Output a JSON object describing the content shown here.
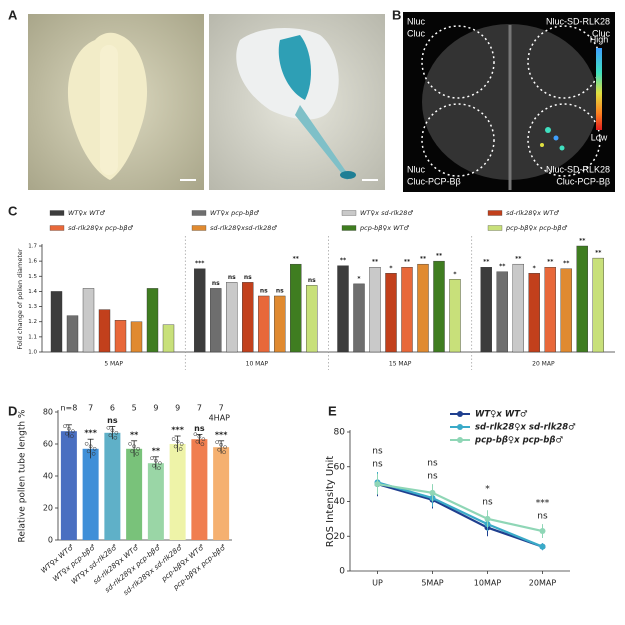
{
  "panel_labels": [
    "A",
    "B",
    "C",
    "D",
    "E"
  ],
  "panel_b": {
    "labels": [
      "Nluc",
      "Cluc",
      "Nluc-SD-RLK28",
      "Cluc",
      "Nluc",
      "Cluc-PCP-Bβ",
      "Nluc-SD-RLK28",
      "Cluc-PCP-Bβ"
    ],
    "scale": [
      "High",
      "Low"
    ]
  },
  "chart_data": [
    {
      "type": "bar",
      "ylabel": "Fold change of pollen diameter",
      "categories": [
        "5 MAP",
        "10 MAP",
        "15 MAP",
        "20 MAP"
      ],
      "ylim": [
        1.0,
        1.7
      ],
      "yticks": [
        {
          "value": 1.0,
          "label": "1.0"
        },
        1.1,
        1.2,
        1.3,
        1.4,
        1.5,
        1.6,
        1.7
      ],
      "series": [
        {
          "name": "WT♀x WT♂",
          "color": "#3c3c3c",
          "values": [
            1.4,
            1.55,
            1.57,
            1.56
          ],
          "labels": [
            null,
            "***",
            "**",
            "**"
          ]
        },
        {
          "name": "WT♀x pcp-bβ♂",
          "color": "#6e6e6e",
          "values": [
            1.24,
            1.42,
            1.45,
            1.53
          ],
          "labels": [
            null,
            "ns",
            "*",
            "**"
          ]
        },
        {
          "name": "WT♀x sd-rlk28♂",
          "color": "#c9c9c9",
          "values": [
            1.42,
            1.46,
            1.56,
            1.58
          ],
          "labels": [
            null,
            "ns",
            "**",
            "**"
          ]
        },
        {
          "name": "sd-rlk28♀x WT♂",
          "color": "#c2401c",
          "values": [
            1.28,
            1.46,
            1.52,
            1.52
          ],
          "labels": [
            null,
            "ns",
            "*",
            "*"
          ]
        },
        {
          "name": "sd-rlk28♀x pcp-bβ♂",
          "color": "#e8683a",
          "values": [
            1.21,
            1.37,
            1.56,
            1.56
          ],
          "labels": [
            null,
            "ns",
            "**",
            "**"
          ]
        },
        {
          "name": "sd-rlk28♀xsd-rlk28♂",
          "color": "#e08a30",
          "values": [
            1.2,
            1.37,
            1.58,
            1.55
          ],
          "labels": [
            null,
            "ns",
            "**",
            "**"
          ]
        },
        {
          "name": "pcp-bβ♀x WT♂",
          "color": "#3f7d20",
          "values": [
            1.42,
            1.58,
            1.6,
            1.7
          ],
          "labels": [
            null,
            "**",
            "**",
            "**"
          ]
        },
        {
          "name": "pcp-bβ♀x pcp-bβ♂",
          "color": "#c8e07a",
          "values": [
            1.18,
            1.44,
            1.48,
            1.62
          ],
          "labels": [
            null,
            "ns",
            "*",
            "**"
          ]
        }
      ]
    },
    {
      "type": "bar",
      "ylabel": "Relative pollen tube length %",
      "note": "4HAP",
      "categories": [
        "WT♀x WT♂",
        "WT♀x pcp-bβ♂",
        "WT♀x sd-rlk28♂",
        "sd-rlk28♀x WT♂",
        "sd-rlk28♀x pcp-bβ♂",
        "sd-rlk28♀x sd-rlk28♂",
        "pcp-bβ♀x WT♂",
        "pcp-bβ♀x pcp-bβ♂"
      ],
      "values": [
        68,
        57,
        67,
        57,
        48,
        60,
        63,
        58
      ],
      "errors": [
        4,
        6,
        4,
        5,
        4,
        5,
        3,
        4
      ],
      "colors": [
        "#4a6fc1",
        "#3f8fd8",
        "#5fb0c8",
        "#79c27a",
        "#9ad6a6",
        "#eef3a8",
        "#f07e50",
        "#f5b070"
      ],
      "n_labels": [
        "n=8",
        "7",
        "6",
        "5",
        "9",
        "9",
        "7",
        "7"
      ],
      "annotations": [
        null,
        "***",
        "ns",
        "**",
        "**",
        "***",
        "ns",
        "***"
      ],
      "ylim": [
        0,
        80
      ],
      "yticks": [
        0,
        20,
        40,
        60,
        80
      ]
    },
    {
      "type": "line",
      "ylabel": "ROS Intensity Unit",
      "categories": [
        "UP",
        "5MAP",
        "10MAP",
        "20MAP"
      ],
      "ylim": [
        0,
        80
      ],
      "yticks": [
        0,
        20,
        40,
        60,
        80
      ],
      "series": [
        {
          "name": "WT♀x WT♂",
          "color": "#1f3f8f",
          "values": [
            50,
            41,
            25,
            14
          ],
          "errors": [
            7,
            5,
            5,
            2
          ],
          "labels": [
            null,
            null,
            null,
            null
          ]
        },
        {
          "name": "sd-rlk28♀x sd-rlk28♂",
          "color": "#3aaac8",
          "values": [
            51,
            42,
            27,
            14
          ],
          "errors": [
            6,
            5,
            4,
            2
          ],
          "labels": [
            "ns",
            "ns",
            "ns",
            "ns"
          ]
        },
        {
          "name": "pcp-bβ♀x pcp-bβ♂",
          "color": "#8fd6b6",
          "values": [
            50,
            45,
            30,
            23
          ],
          "errors": [
            6,
            5,
            5,
            4
          ],
          "labels": [
            "ns",
            "ns",
            "*",
            "***"
          ]
        }
      ]
    }
  ]
}
